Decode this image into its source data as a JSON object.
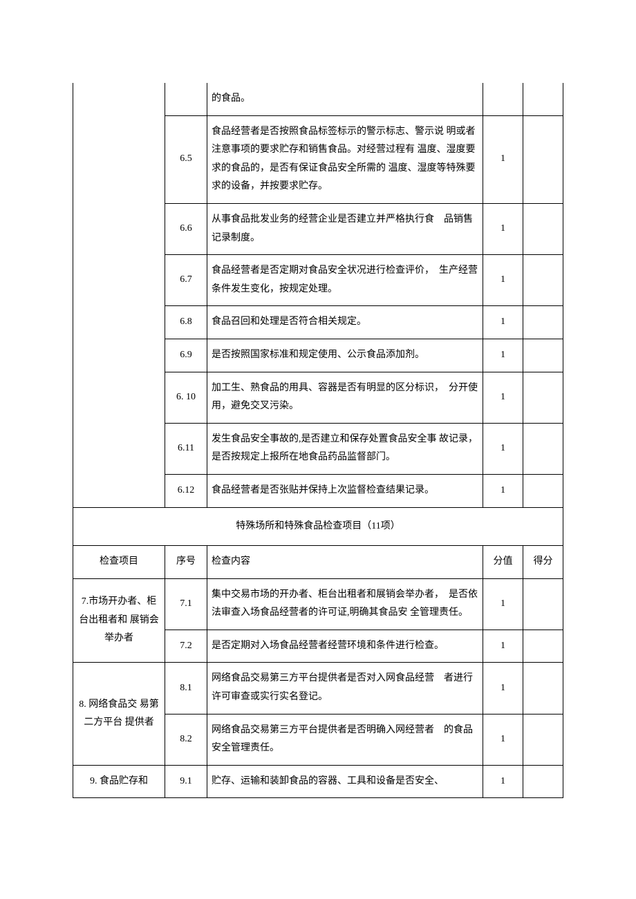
{
  "table": {
    "rows_part1": [
      {
        "num": "",
        "desc": "的食品。",
        "score": ""
      },
      {
        "num": "6.5",
        "desc": "食品经营者是否按照食品标签标示的警示标志、警示说 明或者注意事项的要求贮存和销售食品。对经营过程有 温度、湿度要求的食品的，是否有保证食品安全所需的 温度、湿度等特殊要求的设备，并按要求贮存。",
        "score": "1"
      },
      {
        "num": "6.6",
        "desc": "从事食品批发业务的经营企业是否建立并严格执行食　品销售记录制度。",
        "score": "1"
      },
      {
        "num": "6.7",
        "desc": "食品经营者是否定期对食品安全状况进行检查评价，　生产经营条件发生变化，按规定处理。",
        "score": "1"
      },
      {
        "num": "6.8",
        "desc": "食品召回和处理是否符合相关规定。",
        "score": "1"
      },
      {
        "num": "6.9",
        "desc": "是否按照国家标准和规定使用、公示食品添加剂。",
        "score": "1"
      },
      {
        "num": "6. 10",
        "desc": "加工生、熟食品的用具、容器是否有明显的区分标识，　分开使用，避免交叉污染。",
        "score": "1"
      },
      {
        "num": "6.11",
        "desc": "发生食品安全事故的,是否建立和保存处置食品安全事 故记录，是否按规定上报所在地食品药品监督部门。",
        "score": "1"
      },
      {
        "num": "6.12",
        "desc": "食品经营者是否张贴并保持上次监督检查结果记录。",
        "score": "1"
      }
    ],
    "section_title": "特殊场所和特殊食品检查项目（11项）",
    "header": {
      "cat": "检查项目",
      "num": "序号",
      "desc": "检查内容",
      "score": "分值",
      "got": "得分"
    },
    "group7": {
      "label": "7.市场开办者、柜台出租者和 展销会举办者",
      "rows": [
        {
          "num": "7.1",
          "desc": "集中交易市场的开办者、柜台出租者和展销会举办者，　是否依法审查入场食品经营者的许可证,明确其食品安 全管理责任。",
          "score": "1"
        },
        {
          "num": "7.2",
          "desc": "是否定期对入场食品经营者经营环境和条件进行检查。",
          "score": "1"
        }
      ]
    },
    "group8": {
      "label": "8. 网络食品交 易第二方平台 提供者",
      "rows": [
        {
          "num": "8.1",
          "desc": "网络食品交易第三方平台提供者是否对入网食品经营　者进行许可审查或实行实名登记。",
          "score": "1"
        },
        {
          "num": "8.2",
          "desc": "网络食品交易第三方平台提供者是否明确入网经营者　的食品安全管理责任。",
          "score": "1"
        }
      ]
    },
    "group9": {
      "label": "9. 食品贮存和",
      "rows": [
        {
          "num": "9.1",
          "desc": "贮存、运输和装卸食品的容器、工具和设备是否安全、",
          "score": "1"
        }
      ]
    }
  }
}
